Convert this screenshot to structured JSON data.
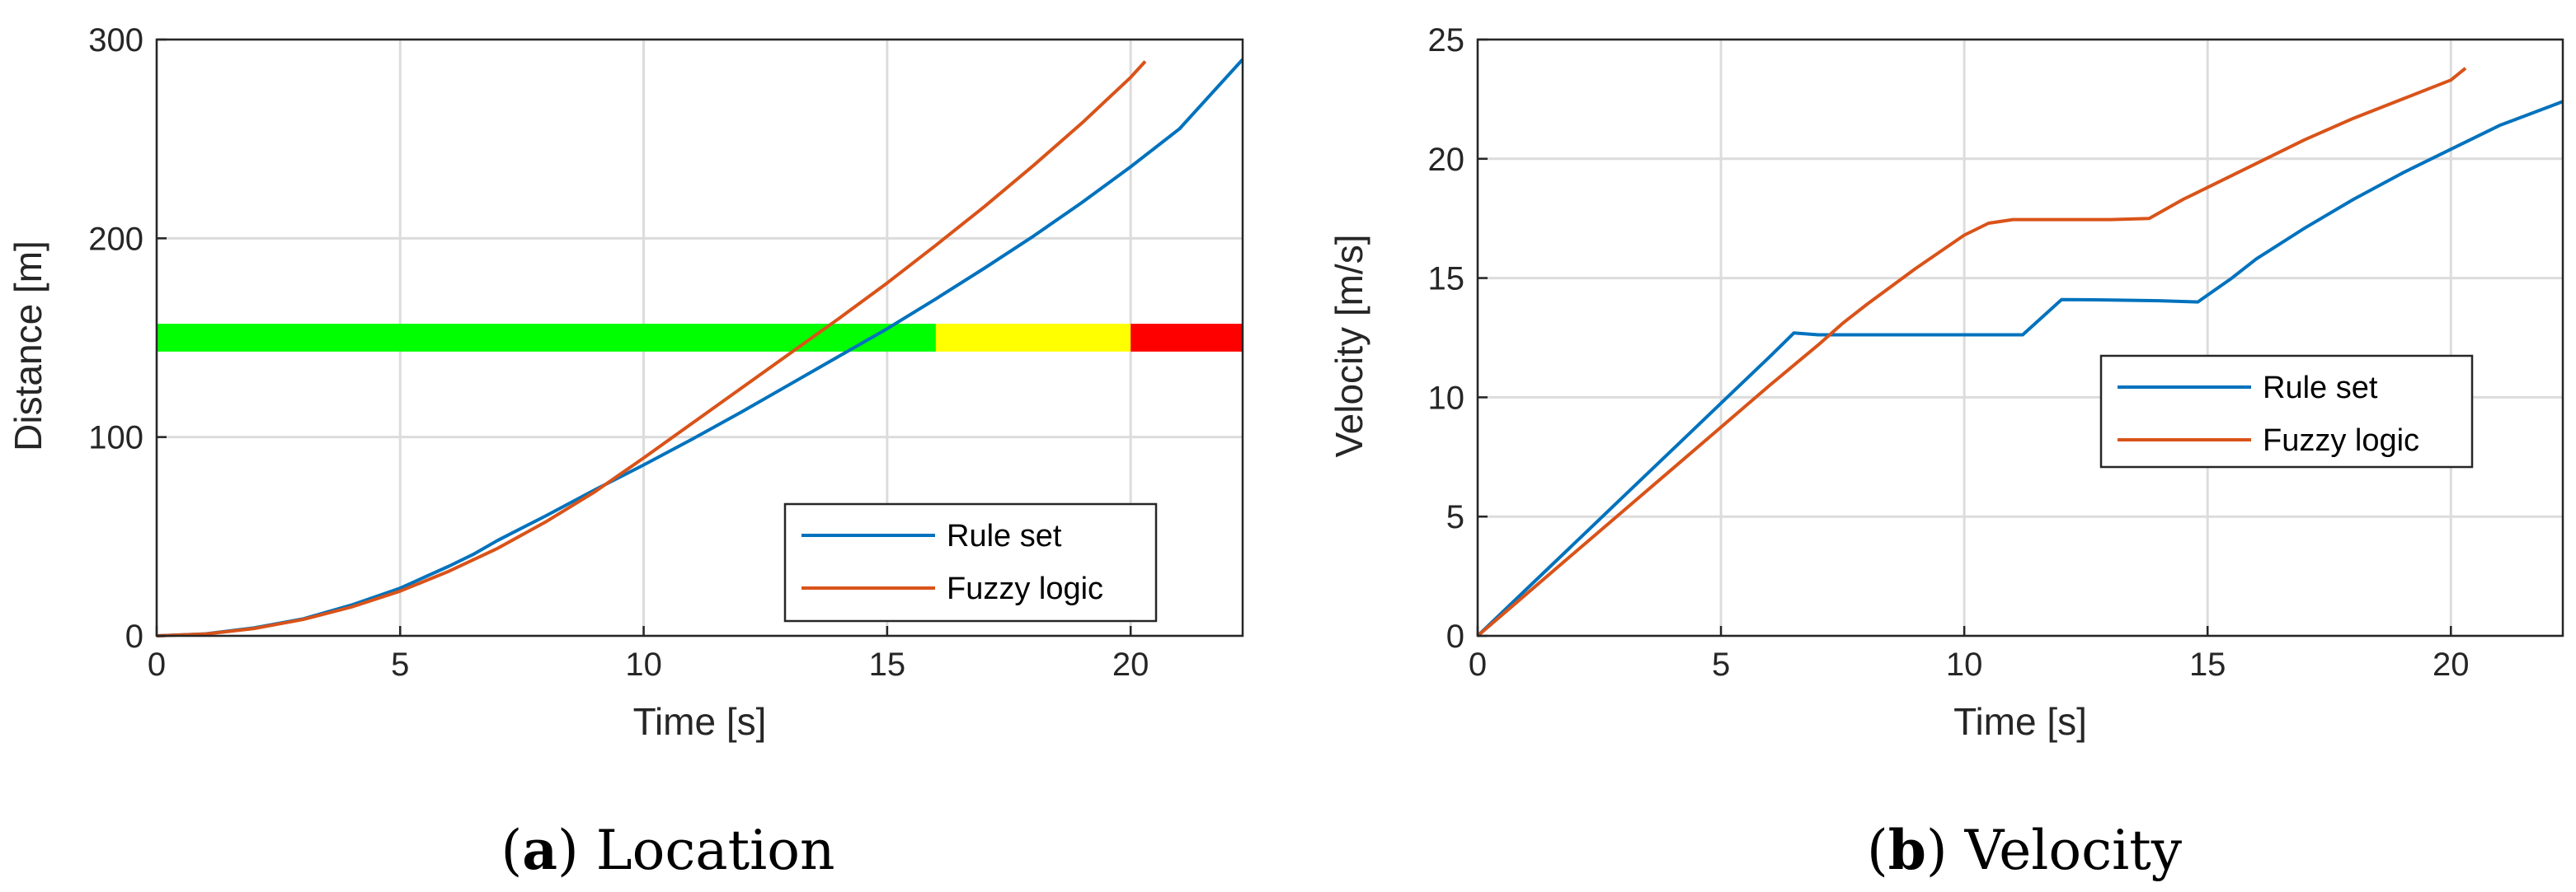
{
  "colors": {
    "rule_set": "#0072BD",
    "fuzzy_logic": "#D95319",
    "zone_green": "#00FF00",
    "zone_yellow": "#FFFF00",
    "zone_red": "#FF0000"
  },
  "captions": {
    "a_letter": "a",
    "a_text": "Location",
    "b_letter": "b",
    "b_text": "Velocity"
  },
  "chart_data": [
    {
      "type": "line",
      "xlabel": "Time [s]",
      "ylabel": "Distance [m]",
      "xlim": [
        0,
        22.3
      ],
      "ylim": [
        0,
        300
      ],
      "xticks": [
        0,
        5,
        10,
        15,
        20
      ],
      "yticks": [
        0,
        100,
        200,
        300
      ],
      "grid": true,
      "legend_position": "bottom-right",
      "bands": [
        {
          "color": "green",
          "x": [
            0,
            16
          ],
          "y": [
            143,
            157
          ]
        },
        {
          "color": "yellow",
          "x": [
            16,
            20
          ],
          "y": [
            143,
            157
          ]
        },
        {
          "color": "red",
          "x": [
            20,
            22.3
          ],
          "y": [
            143,
            157
          ]
        }
      ],
      "series": [
        {
          "name": "Rule set",
          "x": [
            0,
            1,
            2,
            3,
            4,
            5,
            6,
            6.5,
            7,
            8,
            9,
            10,
            11,
            12,
            13,
            14,
            15,
            16,
            17,
            18,
            19,
            20,
            21,
            22.3
          ],
          "y": [
            0,
            1,
            4,
            8.5,
            15.5,
            24,
            35,
            41,
            48,
            60.5,
            73.5,
            86,
            99,
            112.5,
            126.5,
            140.5,
            154.5,
            169.5,
            185,
            201,
            218,
            236,
            255,
            290
          ]
        },
        {
          "name": "Fuzzy logic",
          "x": [
            0,
            1,
            2,
            3,
            4,
            5,
            6,
            7,
            8,
            9,
            10,
            11,
            12,
            13,
            14,
            15,
            16,
            17,
            18,
            19,
            20,
            20.3
          ],
          "y": [
            0,
            0.9,
            3.7,
            8.2,
            14.5,
            22.5,
            32.5,
            44,
            57.5,
            72.5,
            89.5,
            107,
            124.5,
            142,
            159.5,
            177.5,
            196.5,
            216,
            236.5,
            258,
            281,
            289
          ]
        }
      ]
    },
    {
      "type": "line",
      "xlabel": "Time [s]",
      "ylabel": "Velocity [m/s]",
      "xlim": [
        0,
        22.3
      ],
      "ylim": [
        0,
        25
      ],
      "xticks": [
        0,
        5,
        10,
        15,
        20
      ],
      "yticks": [
        0,
        5,
        10,
        15,
        20,
        25
      ],
      "grid": true,
      "legend_position": "center-right",
      "series": [
        {
          "name": "Rule set",
          "x": [
            0,
            1,
            2,
            3,
            4,
            5,
            6,
            6.5,
            7,
            8,
            9,
            10,
            11,
            11.2,
            12,
            13,
            14,
            14.8,
            15.5,
            16,
            17,
            18,
            19,
            20,
            21,
            22.3
          ],
          "y": [
            0,
            1.95,
            3.9,
            5.85,
            7.8,
            9.75,
            11.7,
            12.7,
            12.62,
            12.62,
            12.62,
            12.62,
            12.62,
            12.62,
            14.1,
            14.08,
            14.05,
            14.0,
            15.0,
            15.8,
            17.1,
            18.3,
            19.4,
            20.4,
            21.4,
            22.4
          ]
        },
        {
          "name": "Fuzzy logic",
          "x": [
            0,
            1,
            2,
            3,
            4,
            5,
            6,
            7,
            7.5,
            8,
            9,
            10,
            10.5,
            11,
            12,
            13,
            13.8,
            14.5,
            15,
            16,
            17,
            18,
            19,
            20,
            20.3
          ],
          "y": [
            0,
            1.75,
            3.5,
            5.25,
            7.0,
            8.75,
            10.5,
            12.2,
            13.1,
            13.9,
            15.4,
            16.8,
            17.3,
            17.45,
            17.45,
            17.45,
            17.5,
            18.3,
            18.8,
            19.8,
            20.8,
            21.7,
            22.5,
            23.3,
            23.8
          ]
        }
      ]
    }
  ]
}
